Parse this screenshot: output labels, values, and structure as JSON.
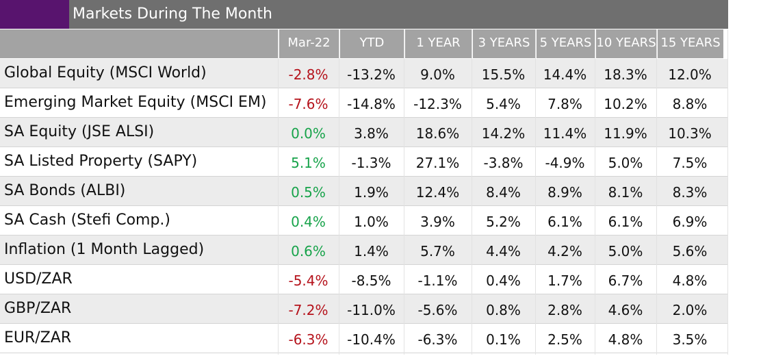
{
  "title": "Markets During The Month",
  "colors": {
    "accent": "#58146e",
    "title_bar": "#6f6f6f",
    "header": "#a3a3a3",
    "negative": "#b5121b",
    "positive": "#17a34a"
  },
  "columns": [
    "Mar-22",
    "YTD",
    "1 YEAR",
    "3 YEARS",
    "5 YEARS",
    "10 YEARS",
    "15 YEARS"
  ],
  "rows": [
    {
      "label": "Global Equity (MSCI World)",
      "month_sign": "negative",
      "values": [
        "-2.8%",
        "-13.2%",
        "9.0%",
        "15.5%",
        "14.4%",
        "18.3%",
        "12.0%"
      ]
    },
    {
      "label": "Emerging Market Equity (MSCI EM)",
      "month_sign": "negative",
      "values": [
        "-7.6%",
        "-14.8%",
        "-12.3%",
        "5.4%",
        "7.8%",
        "10.2%",
        "8.8%"
      ]
    },
    {
      "label": "SA Equity (JSE ALSI)",
      "month_sign": "positive",
      "values": [
        "0.0%",
        "3.8%",
        "18.6%",
        "14.2%",
        "11.4%",
        "11.9%",
        "10.3%"
      ]
    },
    {
      "label": "SA Listed Property (SAPY)",
      "month_sign": "positive",
      "values": [
        "5.1%",
        "-1.3%",
        "27.1%",
        "-3.8%",
        "-4.9%",
        "5.0%",
        "7.5%"
      ]
    },
    {
      "label": "SA Bonds (ALBI)",
      "month_sign": "positive",
      "values": [
        "0.5%",
        "1.9%",
        "12.4%",
        "8.4%",
        "8.9%",
        "8.1%",
        "8.3%"
      ]
    },
    {
      "label": "SA Cash (Stefi Comp.)",
      "month_sign": "positive",
      "values": [
        "0.4%",
        "1.0%",
        "3.9%",
        "5.2%",
        "6.1%",
        "6.1%",
        "6.9%"
      ]
    },
    {
      "label": "Inflation (1 Month Lagged)",
      "month_sign": "positive",
      "values": [
        "0.6%",
        "1.4%",
        "5.7%",
        "4.4%",
        "4.2%",
        "5.0%",
        "5.6%"
      ]
    },
    {
      "label": "USD/ZAR",
      "month_sign": "negative",
      "values": [
        "-5.4%",
        "-8.5%",
        "-1.1%",
        "0.4%",
        "1.7%",
        "6.7%",
        "4.8%"
      ]
    },
    {
      "label": "GBP/ZAR",
      "month_sign": "negative",
      "values": [
        "-7.2%",
        "-11.0%",
        "-5.6%",
        "0.8%",
        "2.8%",
        "4.6%",
        "2.0%"
      ]
    },
    {
      "label": "EUR/ZAR",
      "month_sign": "negative",
      "values": [
        "-6.3%",
        "-10.4%",
        "-6.3%",
        "0.1%",
        "2.5%",
        "4.8%",
        "3.5%"
      ]
    }
  ]
}
